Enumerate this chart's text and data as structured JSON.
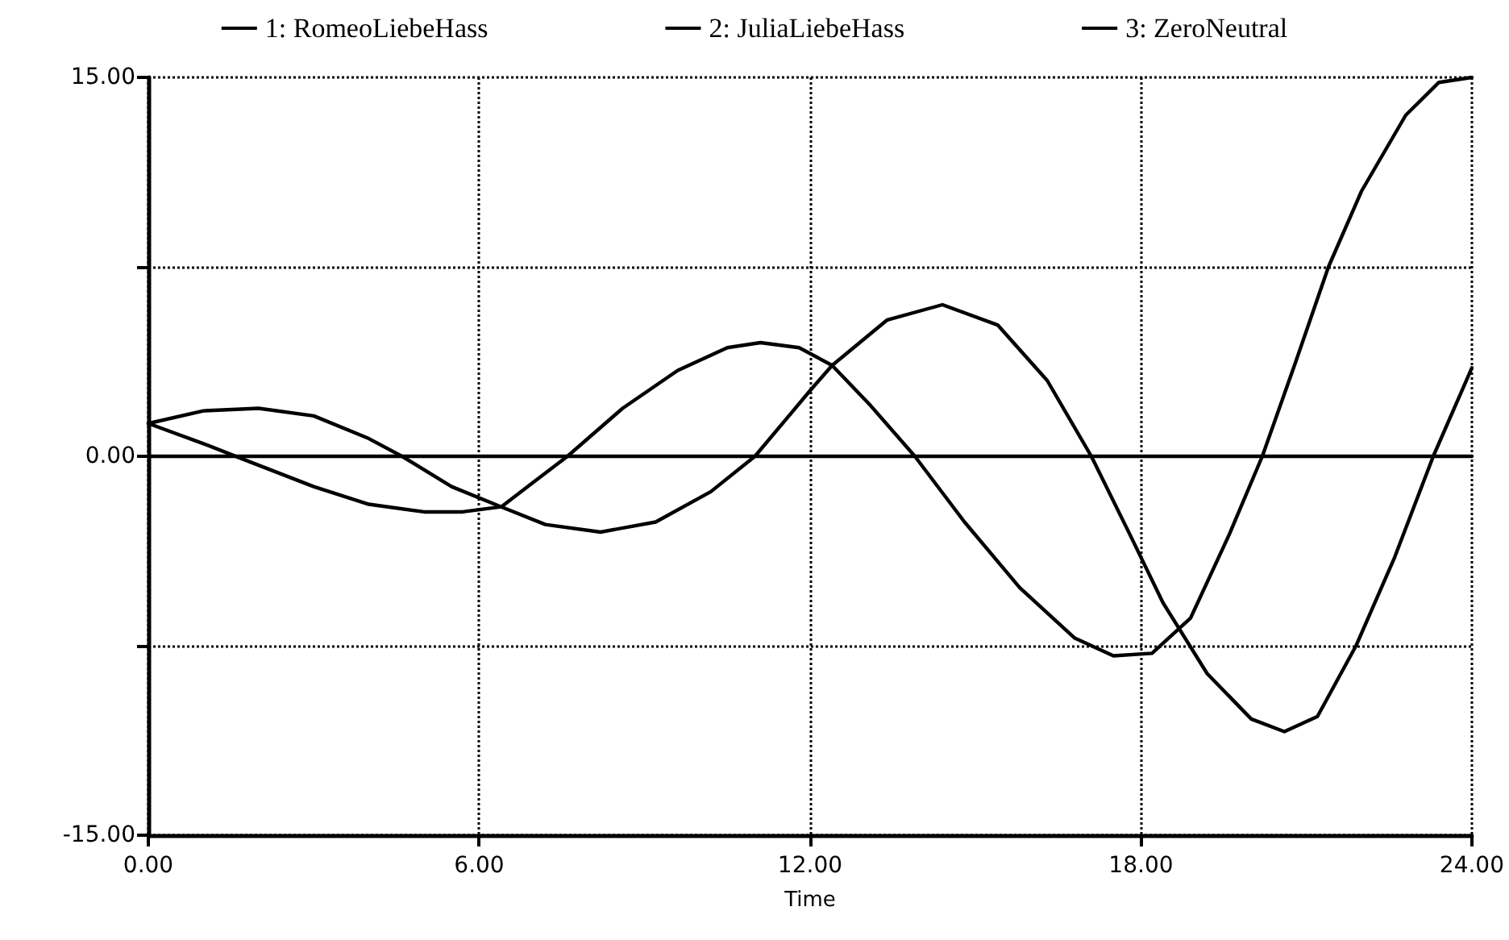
{
  "chart_data": {
    "type": "line",
    "xlabel": "Time",
    "xlim": [
      0,
      24
    ],
    "ylim": [
      -15,
      15
    ],
    "xticks": [
      {
        "value": 0,
        "label": "0.00"
      },
      {
        "value": 6,
        "label": "6.00"
      },
      {
        "value": 12,
        "label": "12.00"
      },
      {
        "value": 18,
        "label": "18.00"
      },
      {
        "value": 24,
        "label": "24.00"
      }
    ],
    "yticks": [
      {
        "value": -15,
        "label": "-15.00"
      },
      {
        "value": -7.5,
        "label": null
      },
      {
        "value": 0,
        "label": "0.00"
      },
      {
        "value": 7.5,
        "label": null
      },
      {
        "value": 15,
        "label": "15.00"
      }
    ],
    "grid": true,
    "legend": "top",
    "marker": "none",
    "line_style": "solid",
    "series": [
      {
        "name": "1: RomeoLiebeHass",
        "color": "#000000",
        "x": [
          0,
          1,
          2,
          3,
          4,
          4.6,
          5.5,
          6.4,
          7.2,
          8.2,
          9.2,
          10.2,
          11,
          12,
          12.4,
          13.4,
          14.4,
          15.4,
          16.3,
          17.1,
          17.8,
          18.4,
          19.2,
          20,
          20.6,
          21.2,
          21.9,
          22.6,
          23.3,
          24
        ],
        "values": [
          1.3,
          1.8,
          1.9,
          1.6,
          0.7,
          0,
          -1.2,
          -2.0,
          -2.7,
          -3.0,
          -2.6,
          -1.4,
          0,
          2.6,
          3.6,
          5.4,
          6.0,
          5.2,
          3.0,
          0,
          -3.1,
          -5.8,
          -8.6,
          -10.4,
          -10.9,
          -10.3,
          -7.5,
          -4.0,
          0,
          3.5
        ]
      },
      {
        "name": "2: JuliaLiebeHass",
        "color": "#000000",
        "x": [
          0,
          1,
          1.7,
          3,
          4,
          5,
          5.7,
          6.4,
          7,
          7.6,
          8.6,
          9.6,
          10.5,
          11.1,
          11.8,
          12.4,
          13.1,
          13.9,
          14.8,
          15.8,
          16.8,
          17.5,
          18.2,
          18.9,
          19.6,
          20.2,
          20.8,
          21.4,
          22,
          22.8,
          23.4,
          24
        ],
        "values": [
          1.3,
          0.5,
          -0.1,
          -1.2,
          -1.9,
          -2.2,
          -2.2,
          -2.0,
          -1.0,
          0,
          1.9,
          3.4,
          4.3,
          4.5,
          4.3,
          3.6,
          2.0,
          0,
          -2.6,
          -5.2,
          -7.2,
          -7.9,
          -7.8,
          -6.4,
          -3.1,
          0,
          3.7,
          7.5,
          10.5,
          13.5,
          14.8,
          15
        ]
      },
      {
        "name": "3: ZeroNeutral",
        "color": "#000000",
        "x": [
          0,
          24
        ],
        "values": [
          0,
          0
        ]
      }
    ]
  }
}
